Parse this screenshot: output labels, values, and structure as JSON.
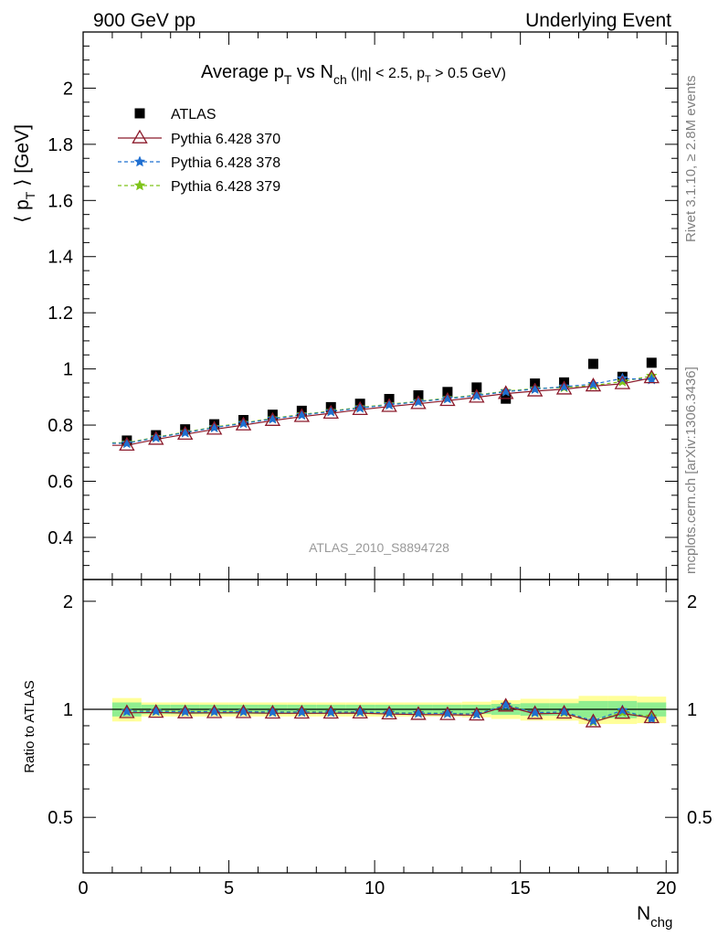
{
  "header": {
    "left": "900 GeV pp",
    "right": "Underlying Event"
  },
  "side_labels": {
    "rivet": "Rivet 3.1.10, ≥ 2.8M events",
    "mcplots": "mcplots.cern.ch [arXiv:1306.3436]"
  },
  "chart_data": {
    "type": "scatter",
    "title": "Average p_T vs N_ch (|η| < 2.5, p_T > 0.5 GeV)",
    "title_parts": {
      "a": "Average p",
      "a_sub": "T",
      "b": " vs N",
      "b_sub": "ch",
      "c": " (|η| < 2.5, p",
      "c_sub": "T",
      "d": " > 0.5 GeV)"
    },
    "ylabel_parts": {
      "a": "⟨ p",
      "sub": "T",
      "b": " ⟩ [GeV]"
    },
    "ratio_ylabel": "Ratio to ATLAS",
    "xlabel_parts": {
      "main": "N",
      "sub": "chg"
    },
    "analysis_label": "ATLAS_2010_S8894728",
    "xlim": [
      0,
      20.4
    ],
    "ylim": [
      0.25,
      2.2
    ],
    "ratio_ylim": [
      0.35,
      2.3
    ],
    "x_ticks": [
      "0",
      "5",
      "10",
      "15",
      "20"
    ],
    "y_ticks": [
      "0.4",
      "0.6",
      "0.8",
      "1",
      "1.2",
      "1.4",
      "1.6",
      "1.8",
      "2"
    ],
    "ratio_ticks": [
      "0.5",
      "1",
      "2"
    ],
    "legend_position": "top-left",
    "x": [
      1.5,
      2.5,
      3.5,
      4.5,
      5.5,
      6.5,
      7.5,
      8.5,
      9.5,
      10.5,
      11.5,
      12.5,
      13.5,
      14.5,
      15.5,
      16.5,
      17.5,
      18.5,
      19.5
    ],
    "series": [
      {
        "name": "ATLAS",
        "color": "#000000",
        "marker": "square",
        "values": [
          0.745,
          0.764,
          0.785,
          0.803,
          0.818,
          0.837,
          0.851,
          0.864,
          0.876,
          0.893,
          0.906,
          0.918,
          0.934,
          0.894,
          0.948,
          0.952,
          1.018,
          0.972,
          1.022
        ]
      },
      {
        "name": "Pythia 6.428 370",
        "color": "#8b1a2b",
        "marker": "triangle",
        "line": "solid",
        "values": [
          0.728,
          0.749,
          0.767,
          0.785,
          0.8,
          0.816,
          0.83,
          0.842,
          0.855,
          0.866,
          0.876,
          0.887,
          0.899,
          0.912,
          0.921,
          0.928,
          0.939,
          0.947,
          0.968
        ]
      },
      {
        "name": "Pythia 6.428 378",
        "color": "#1f6fd1",
        "marker": "star",
        "line": "dashed",
        "values": [
          0.735,
          0.755,
          0.773,
          0.791,
          0.806,
          0.822,
          0.836,
          0.848,
          0.861,
          0.872,
          0.883,
          0.894,
          0.905,
          0.919,
          0.928,
          0.937,
          0.946,
          0.966,
          0.962
        ]
      },
      {
        "name": "Pythia 6.428 379",
        "color": "#7fc41a",
        "marker": "star",
        "line": "dashed",
        "values": [
          0.737,
          0.757,
          0.775,
          0.793,
          0.808,
          0.824,
          0.838,
          0.85,
          0.863,
          0.874,
          0.885,
          0.896,
          0.907,
          0.921,
          0.93,
          0.934,
          0.941,
          0.955,
          0.975
        ]
      }
    ],
    "ratio_series": [
      {
        "name": "Pythia 6.428 370",
        "values": [
          0.978,
          0.98,
          0.977,
          0.978,
          0.978,
          0.975,
          0.975,
          0.975,
          0.976,
          0.97,
          0.967,
          0.966,
          0.963,
          1.02,
          0.972,
          0.975,
          0.922,
          0.974,
          0.947
        ]
      },
      {
        "name": "Pythia 6.428 378",
        "values": [
          0.987,
          0.988,
          0.985,
          0.985,
          0.985,
          0.982,
          0.982,
          0.981,
          0.983,
          0.977,
          0.975,
          0.974,
          0.969,
          1.028,
          0.979,
          0.984,
          0.929,
          0.994,
          0.941
        ]
      },
      {
        "name": "Pythia 6.428 379",
        "values": [
          0.989,
          0.991,
          0.987,
          0.988,
          0.988,
          0.984,
          0.985,
          0.984,
          0.985,
          0.979,
          0.977,
          0.976,
          0.971,
          1.03,
          0.981,
          0.981,
          0.924,
          0.982,
          0.954
        ]
      }
    ],
    "bands": {
      "inner_color": "#90ee90",
      "outer_color": "#ffff99",
      "inner_halfwidth": [
        0.045,
        0.03,
        0.03,
        0.03,
        0.03,
        0.03,
        0.03,
        0.03,
        0.03,
        0.03,
        0.03,
        0.03,
        0.03,
        0.035,
        0.04,
        0.04,
        0.055,
        0.055,
        0.045
      ],
      "outer_halfwidth": [
        0.075,
        0.045,
        0.045,
        0.045,
        0.045,
        0.045,
        0.045,
        0.045,
        0.045,
        0.045,
        0.045,
        0.045,
        0.05,
        0.06,
        0.07,
        0.07,
        0.09,
        0.09,
        0.085
      ]
    }
  }
}
